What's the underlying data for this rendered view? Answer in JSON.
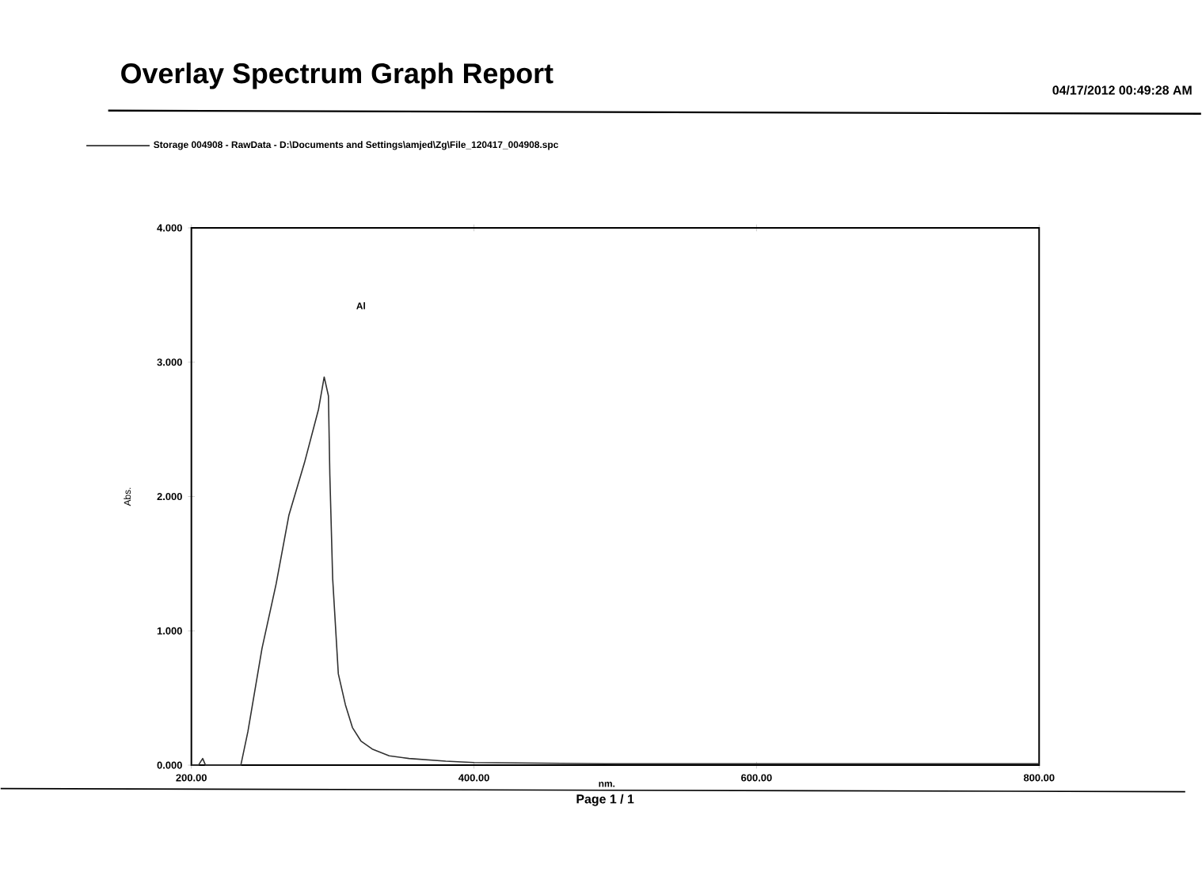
{
  "chart_data": {
    "type": "line",
    "title": "Overlay Spectrum Graph Report",
    "subtitle": "04/17/2012   00:49:28 AM",
    "xlabel": "nm.",
    "ylabel": "Abs.",
    "x": [
      200,
      205,
      208,
      210,
      212,
      220,
      235,
      240,
      250,
      260,
      269,
      280,
      290,
      294,
      297,
      298,
      300,
      304,
      309,
      314,
      320,
      328,
      340,
      354,
      380,
      400,
      500,
      600,
      700,
      800
    ],
    "series": [
      {
        "name": "Storage 004908 - RawData - D:\\Documents and Settings\\amjed\\Zg\\File_120417_004908.spc",
        "color": "#303030",
        "values": [
          0.0,
          0.0,
          0.05,
          0.0,
          0.0,
          0.0,
          0.0,
          0.25,
          0.87,
          1.35,
          1.86,
          2.25,
          2.65,
          2.89,
          2.75,
          2.16,
          1.39,
          0.68,
          0.45,
          0.28,
          0.18,
          0.12,
          0.07,
          0.05,
          0.03,
          0.02,
          0.01,
          0.01,
          0.01,
          0.01
        ]
      }
    ],
    "xlim": [
      200,
      800
    ],
    "ylim": [
      0,
      4
    ],
    "xticks": [
      {
        "value": 200,
        "label": "200.00"
      },
      {
        "value": 400,
        "label": "400.00"
      },
      {
        "value": 600,
        "label": "600.00"
      },
      {
        "value": 800,
        "label": "800.00"
      }
    ],
    "yticks": [
      {
        "value": 0,
        "label": "0.000"
      },
      {
        "value": 1,
        "label": "1.000"
      },
      {
        "value": 2,
        "label": "2.000"
      },
      {
        "value": 3,
        "label": "3.000"
      },
      {
        "value": 4,
        "label": "4.000"
      }
    ],
    "annotations": [
      "Al",
      "Page 1 / 1"
    ],
    "legend": "top left",
    "grid": false,
    "marker": "none",
    "line_style": "solid"
  }
}
